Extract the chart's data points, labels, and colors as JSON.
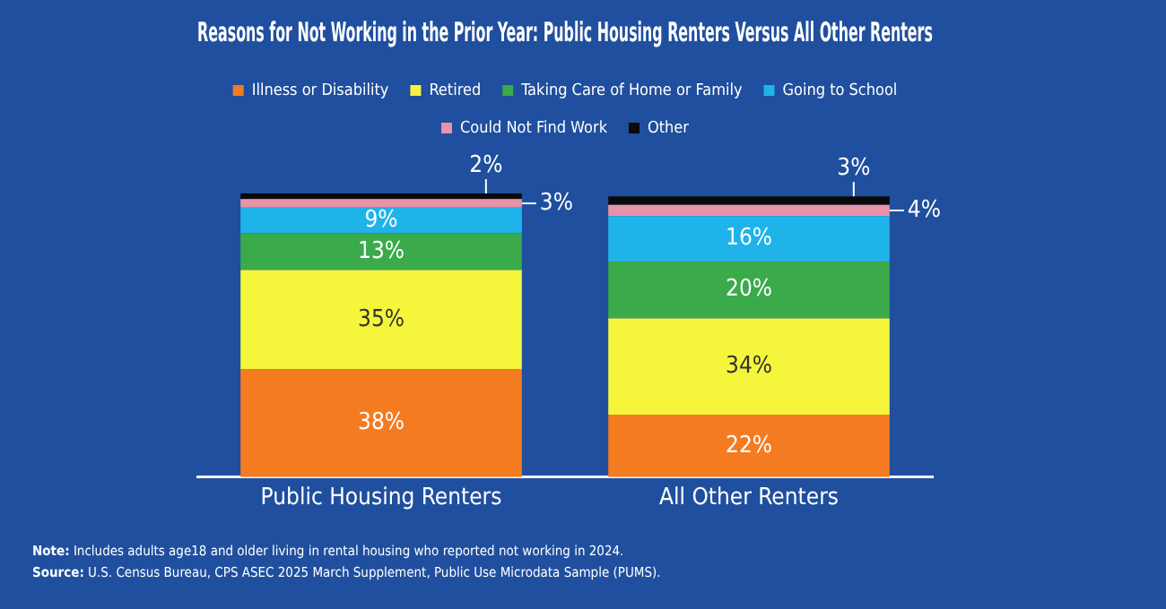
{
  "chart_data": {
    "type": "bar",
    "stacked": true,
    "title": "Reasons for Not Working in the Prior Year: Public Housing Renters Versus All Other Renters",
    "categories": [
      "Public Housing Renters",
      "All Other Renters"
    ],
    "series": [
      {
        "name": "Illness or Disability",
        "color": "#f47b20",
        "values": [
          38,
          22
        ],
        "value_labels": [
          "38%",
          "22%"
        ]
      },
      {
        "name": "Retired",
        "color": "#f5f53c",
        "values": [
          35,
          34
        ],
        "value_labels": [
          "35%",
          "34%"
        ]
      },
      {
        "name": "Taking Care of Home or Family",
        "color": "#3aaa4a",
        "values": [
          13,
          20
        ],
        "value_labels": [
          "13%",
          "20%"
        ]
      },
      {
        "name": "Going to School",
        "color": "#1fb3ea",
        "values": [
          9,
          16
        ],
        "value_labels": [
          "9%",
          "16%"
        ]
      },
      {
        "name": "Could Not Find Work",
        "color": "#e993a8",
        "values": [
          3,
          4
        ],
        "value_labels": [
          "3%",
          "4%"
        ]
      },
      {
        "name": "Other",
        "color": "#0a0a0a",
        "values": [
          2,
          3
        ],
        "value_labels": [
          "2%",
          "3%"
        ]
      }
    ],
    "ylim": [
      0,
      100
    ],
    "tick_labels": "x",
    "legend": "top",
    "grid": false,
    "annotations": [
      "Note: Includes adults age18 and older living in rental housing who reported not working in 2024.",
      "Source: U.S. Census Bureau, CPS ASEC 2025 March Supplement, Public Use Microdata Sample (PUMS)."
    ]
  }
}
